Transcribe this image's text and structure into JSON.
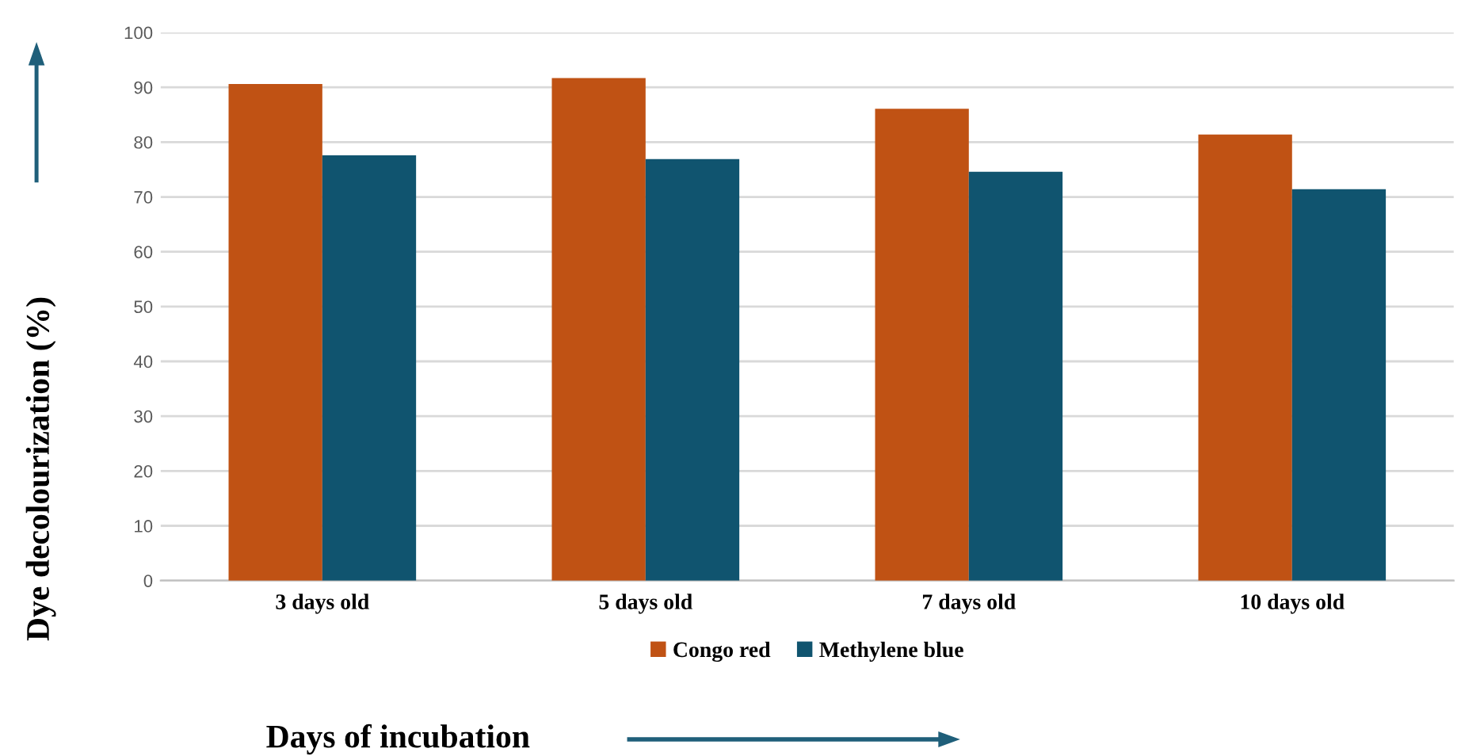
{
  "chart_data": {
    "type": "bar",
    "xlabel": "Days of incubation",
    "ylabel": "Dye decolourization (%)",
    "categories": [
      "3 days old",
      "5 days old",
      "7 days old",
      "10 days old"
    ],
    "series": [
      {
        "name": "Congo red",
        "color": "#c05214",
        "values": [
          90.6,
          91.7,
          86.1,
          81.4
        ]
      },
      {
        "name": "Methylene blue",
        "color": "#10546f",
        "values": [
          77.6,
          76.9,
          74.6,
          71.4
        ]
      }
    ],
    "ylim": [
      0,
      100
    ],
    "yticks": [
      0,
      10,
      20,
      30,
      40,
      50,
      60,
      70,
      80,
      90,
      100
    ],
    "grid": "y",
    "legend": "bottom"
  }
}
